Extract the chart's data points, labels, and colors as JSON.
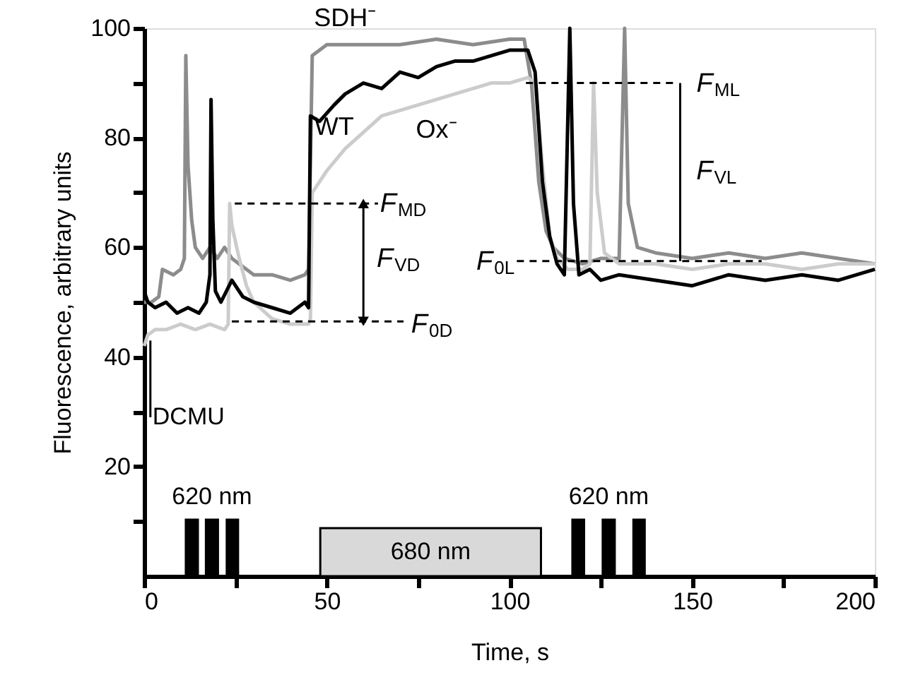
{
  "chart_data": {
    "type": "line",
    "xlabel": "Time, s",
    "ylabel": "Fluorescence, arbitrary units",
    "xlim": [
      0,
      200
    ],
    "ylim": [
      0,
      100
    ],
    "xticks": [
      0,
      {
        "value": 25,
        "label": null
      },
      50,
      {
        "value": 75,
        "label": null
      },
      100,
      {
        "value": 125,
        "label": null
      },
      150,
      {
        "value": 175,
        "label": null
      },
      200
    ],
    "yticks": [
      {
        "value": 10,
        "label": null
      },
      20,
      {
        "value": 30,
        "label": null
      },
      40,
      {
        "value": 50,
        "label": null
      },
      60,
      {
        "value": 70,
        "label": null
      },
      80,
      {
        "value": 90,
        "label": null
      },
      100
    ],
    "grid": false,
    "marker": "none",
    "line_style": "solid",
    "series": [
      {
        "name": "SDH⁻",
        "color": "#8c8c8c",
        "x": [
          0,
          2,
          4,
          5,
          8,
          10,
          11,
          11.4,
          12,
          13,
          14,
          16,
          18,
          20,
          22,
          24,
          26,
          30,
          35,
          40,
          44,
          45,
          46,
          48,
          50,
          55,
          60,
          70,
          80,
          90,
          100,
          104,
          106,
          108,
          110,
          112,
          115,
          120,
          125,
          130,
          131.5,
          132.5,
          135,
          140,
          150,
          160,
          170,
          180,
          190,
          200
        ],
        "values": [
          50,
          50,
          51,
          56,
          55,
          56,
          58,
          95,
          75,
          65,
          60,
          58,
          60,
          58,
          60,
          58,
          57,
          55,
          55,
          54,
          55,
          56,
          95,
          96,
          97,
          97,
          97,
          97,
          98,
          97,
          98,
          98,
          90,
          72,
          63,
          60,
          58,
          57,
          58,
          58,
          100,
          68,
          60,
          59,
          58,
          59,
          58,
          59,
          58,
          57
        ]
      },
      {
        "name": "Ox⁻",
        "color": "#cccccc",
        "x": [
          0,
          1,
          3,
          6,
          10,
          14,
          18,
          22,
          23,
          23.4,
          24,
          26,
          28,
          30,
          35,
          40,
          45,
          45.5,
          46,
          48,
          50,
          55,
          60,
          65,
          70,
          75,
          80,
          85,
          90,
          95,
          100,
          105,
          107,
          109,
          111,
          113,
          116,
          120,
          122,
          123,
          124,
          126,
          130,
          140,
          150,
          160,
          170,
          180,
          190,
          200
        ],
        "values": [
          42,
          44,
          45,
          45,
          46,
          45,
          46,
          45,
          46,
          68,
          64,
          58,
          53,
          50,
          47,
          46,
          46,
          47,
          70,
          72,
          74,
          78,
          81,
          84,
          85,
          86,
          87,
          88,
          89,
          90,
          90,
          91,
          90,
          75,
          62,
          58,
          56,
          56,
          57,
          90,
          70,
          59,
          57,
          57,
          56,
          57,
          57,
          56,
          57,
          57
        ]
      },
      {
        "name": "WT",
        "color": "#000000",
        "x": [
          0,
          1,
          3,
          6,
          9,
          12,
          15,
          17,
          18,
          18.3,
          18.8,
          19.5,
          21,
          24,
          27,
          30,
          35,
          40,
          44,
          45,
          45.5,
          48,
          52,
          55,
          60,
          65,
          70,
          75,
          80,
          85,
          90,
          95,
          100,
          105,
          107,
          109,
          111,
          113,
          115,
          116.5,
          117.5,
          119,
          122,
          125,
          130,
          140,
          150,
          160,
          170,
          180,
          190,
          200
        ],
        "values": [
          52,
          50,
          49,
          50,
          48,
          49,
          48,
          50,
          55,
          87,
          65,
          52,
          50,
          54,
          51,
          50,
          49,
          48,
          50,
          49,
          84,
          83,
          86,
          88,
          90,
          89,
          92,
          91,
          93,
          94,
          94,
          95,
          96,
          96,
          92,
          72,
          62,
          57,
          55,
          100,
          68,
          55,
          56,
          54,
          55,
          54,
          53,
          55,
          54,
          55,
          54,
          56
        ]
      },
      {
        "type": "line",
        "color": "#000000",
        "line_style": "dashed",
        "x": [
          24.8,
          64
        ],
        "values": [
          68,
          68
        ]
      },
      {
        "type": "line",
        "color": "#000000",
        "line_style": "dashed",
        "x": [
          24,
          71
        ],
        "values": [
          46.5,
          46.5
        ]
      },
      {
        "type": "line",
        "color": "#000000",
        "line_style": "dashed",
        "x": [
          102,
          169
        ],
        "values": [
          57.5,
          57.5
        ]
      },
      {
        "type": "line",
        "color": "#000000",
        "line_style": "dashed",
        "x": [
          104.5,
          146
        ],
        "values": [
          90,
          90
        ]
      },
      {
        "type": "line",
        "color": "#000000",
        "marker": "triangle",
        "x": [
          60,
          60
        ],
        "values": [
          46.5,
          68
        ]
      },
      {
        "type": "line",
        "color": "#000000",
        "x": [
          146.7,
          146.7
        ],
        "values": [
          57.5,
          90
        ]
      },
      {
        "type": "line",
        "color": "#000000",
        "x": [
          1.7,
          1.7
        ],
        "values": [
          29,
          43
        ]
      }
    ],
    "bands": [
      {
        "axis": "x",
        "from": 11.4,
        "to": 14.7,
        "color": "#000000"
      },
      {
        "axis": "x",
        "from": 16.9,
        "to": 20.2,
        "color": "#000000",
        "label": "620 nm"
      },
      {
        "axis": "x",
        "from": 22.6,
        "to": 25.7,
        "color": "#000000"
      },
      {
        "axis": "x",
        "from": 48.2,
        "to": 108.6,
        "color": "#d9d9d9",
        "label": "680 nm"
      },
      {
        "axis": "x",
        "from": 117.2,
        "to": 120.4,
        "color": "#000000"
      },
      {
        "axis": "x",
        "from": 125.5,
        "to": 128.8,
        "color": "#000000",
        "label": "620 nm"
      },
      {
        "axis": "x",
        "from": 133.9,
        "to": 137,
        "color": "#000000"
      }
    ],
    "annotations": [
      {
        "text": "F$_{MD}$",
        "x": 64,
        "y": 68
      },
      {
        "text": "F$_{VD}$",
        "x": 60,
        "y": 57
      },
      {
        "text": "F$_{0D}$",
        "x": 71,
        "y": 46.5
      },
      {
        "text": "F$_{0L}$",
        "x": 102,
        "y": 57.5
      },
      {
        "text": "F$_{ML}$",
        "x": 146,
        "y": 90
      },
      {
        "text": "F$_{VL}$",
        "x": 146.7,
        "y": 74
      },
      {
        "text": "DCMU",
        "x": 1.7,
        "y": 29
      }
    ]
  }
}
